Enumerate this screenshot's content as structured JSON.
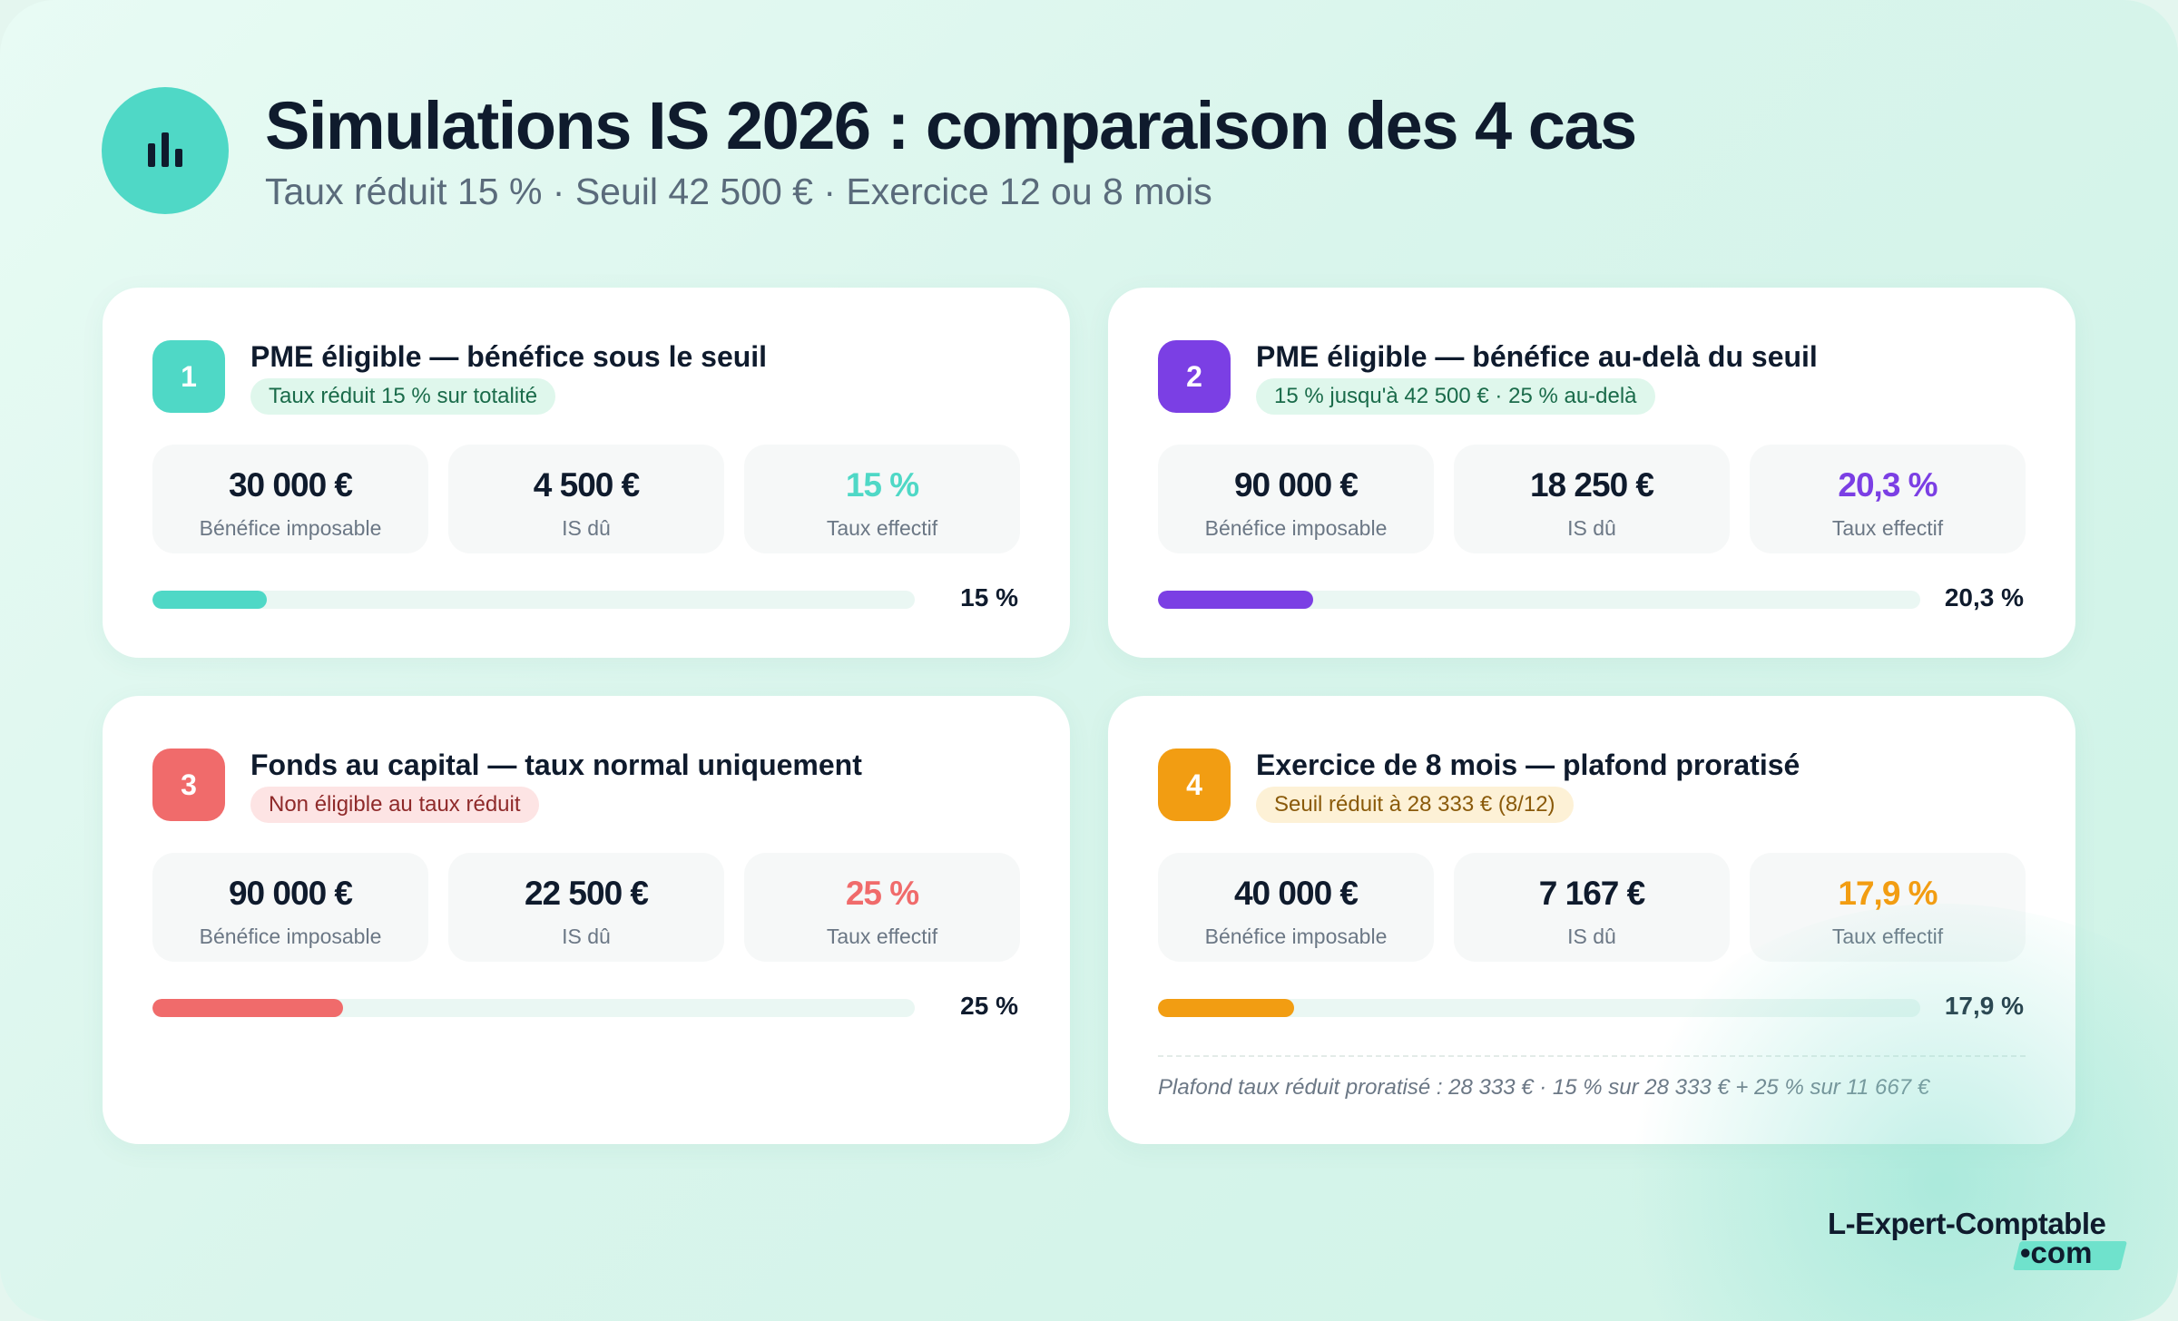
{
  "header": {
    "icon": "bar-chart-icon",
    "title": "Simulations IS 2026 : comparaison des 4 cas",
    "subtitle": "Taux réduit 15 % · Seuil 42 500 € · Exercice 12 ou 8 mois"
  },
  "labels": {
    "benefice": "Bénéfice imposable",
    "is_du": "IS dû",
    "taux": "Taux effectif"
  },
  "cases": [
    {
      "number": "1",
      "title": "PME éligible — bénéfice sous le seuil",
      "tag": "Taux réduit 15 % sur totalité",
      "benefice": "30 000 €",
      "is_du": "4 500 €",
      "taux": "15 %",
      "bar_label": "15 %",
      "accent": "#4fd8c6",
      "tag_bg": "#dff7ec",
      "tag_color": "#1a6b4a",
      "rate": 0.15
    },
    {
      "number": "2",
      "title": "PME éligible — bénéfice au-delà du seuil",
      "tag": "15 % jusqu'à 42 500 € · 25 % au-delà",
      "benefice": "90 000 €",
      "is_du": "18 250 €",
      "taux": "20,3 %",
      "bar_label": "20,3 %",
      "accent": "#7b3fe4",
      "tag_bg": "#dff7ec",
      "tag_color": "#1a6b4a",
      "rate": 0.203
    },
    {
      "number": "3",
      "title": "Fonds au capital — taux normal uniquement",
      "tag": "Non éligible au taux réduit",
      "benefice": "90 000 €",
      "is_du": "22 500 €",
      "taux": "25 %",
      "bar_label": "25 %",
      "accent": "#f06b6b",
      "tag_bg": "#fde4e4",
      "tag_color": "#8f2a2a",
      "rate": 0.25
    },
    {
      "number": "4",
      "title": "Exercice de 8 mois — plafond proratisé",
      "tag": "Seuil réduit à 28 333 € (8/12)",
      "benefice": "40 000 €",
      "is_du": "7 167 €",
      "taux": "17,9 %",
      "bar_label": "17,9 %",
      "accent": "#f29d12",
      "tag_bg": "#fdf1d6",
      "tag_color": "#8a5a0a",
      "rate": 0.179,
      "footnote": "Plafond taux réduit proratisé : 28 333 € · 15 % sur 28 333 € + 25 % sur 11 667 €"
    }
  ],
  "brand": {
    "main": "L-Expert-Comptable",
    "sub": "•com"
  }
}
